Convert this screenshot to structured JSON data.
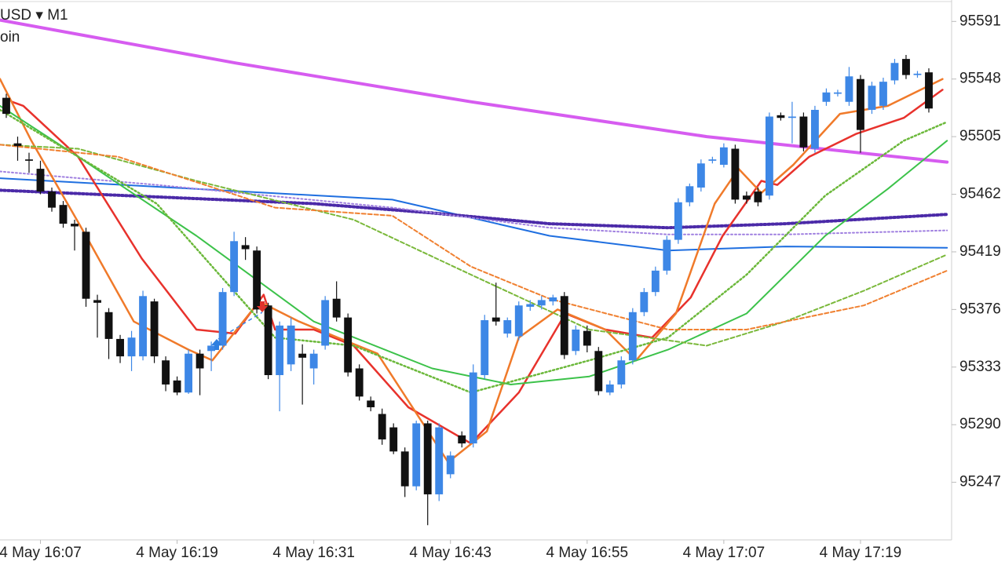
{
  "chart_data": {
    "type": "candlestick",
    "title": "USD ▾ M1",
    "subtitle": "oin",
    "up_color": "#3d87e6",
    "down_color": "#111111",
    "xlim": [
      -0.55,
      83
    ],
    "ylim": [
      95204,
      95607
    ],
    "yticks": [
      95591,
      95548,
      95505,
      95462,
      95419,
      95376,
      95333,
      95290,
      95247
    ],
    "xticks": [
      {
        "value": 3,
        "label": "4 May 16:07"
      },
      {
        "value": 15,
        "label": "4 May 16:19"
      },
      {
        "value": 27,
        "label": "4 May 16:31"
      },
      {
        "value": 39,
        "label": "4 May 16:43"
      },
      {
        "value": 51,
        "label": "4 May 16:55"
      },
      {
        "value": 63,
        "label": "4 May 17:07"
      },
      {
        "value": 75,
        "label": "4 May 17:19"
      }
    ],
    "grid": false,
    "candles": {
      "open": [
        95534,
        95500,
        95488,
        95481,
        95464,
        95454,
        95440,
        95434,
        95383,
        95374,
        95354,
        95341,
        95341,
        95382,
        95338,
        95323,
        95314,
        95343,
        95345,
        95349,
        95389,
        95424,
        95420,
        95379,
        95327,
        95335,
        95343,
        95332,
        95349,
        95384,
        95370,
        95332,
        95308,
        95298,
        95288,
        95270,
        95244,
        95291,
        95238,
        95253,
        95282,
        95276,
        95327,
        95370,
        95358,
        95356,
        95378,
        95379,
        95382,
        95386,
        95345,
        95360,
        95345,
        95314,
        95320,
        95338,
        95374,
        95389,
        95405,
        95428,
        95456,
        95467,
        95487,
        95484,
        95496,
        95461,
        95464,
        95461,
        95521,
        95519,
        95520,
        95496,
        95531,
        95537,
        95531,
        95548,
        95525,
        95528,
        95547,
        95563,
        95551,
        95553
      ],
      "high": [
        95537,
        95505,
        95493,
        95487,
        95467,
        95457,
        95443,
        95437,
        95387,
        95377,
        95357,
        95360,
        95390,
        95384,
        95341,
        95326,
        95346,
        95346,
        95352,
        95392,
        95434,
        95430,
        95423,
        95381,
        95367,
        95370,
        95350,
        95346,
        95386,
        95397,
        95373,
        95335,
        95311,
        95302,
        95291,
        95273,
        95293,
        95293,
        95291,
        95270,
        95285,
        95335,
        95372,
        95396,
        95370,
        95382,
        95383,
        95386,
        95387,
        95389,
        95364,
        95364,
        95348,
        95323,
        95341,
        95377,
        95392,
        95408,
        95431,
        95459,
        95470,
        95488,
        95490,
        95500,
        95499,
        95464,
        95467,
        95523,
        95523,
        95531,
        95523,
        95528,
        95541,
        95540,
        95557,
        95551,
        95546,
        95549,
        95563,
        95566,
        95554,
        95556
      ],
      "low": [
        95519,
        95487,
        95478,
        95462,
        95449,
        95437,
        95420,
        95378,
        95355,
        95339,
        95336,
        95330,
        95338,
        95336,
        95315,
        95312,
        95313,
        95312,
        95330,
        95346,
        95386,
        95413,
        95373,
        95324,
        95300,
        95330,
        95305,
        95320,
        95346,
        95367,
        95326,
        95308,
        95300,
        95275,
        95268,
        95236,
        95241,
        95215,
        95233,
        95250,
        95273,
        95273,
        95324,
        95364,
        95355,
        95353,
        95375,
        95376,
        95379,
        95339,
        95342,
        95344,
        95312,
        95312,
        95317,
        95335,
        95371,
        95386,
        95402,
        95425,
        95453,
        95464,
        95485,
        95482,
        95455,
        95455,
        95453,
        95458,
        95517,
        95500,
        95494,
        95493,
        95528,
        95535,
        95528,
        95493,
        95522,
        95525,
        95544,
        95548,
        95549,
        95523
      ],
      "close": [
        95522,
        95498,
        95487,
        95464,
        95452,
        95440,
        95438,
        95384,
        95381,
        95354,
        95341,
        95355,
        95386,
        95341,
        95320,
        95314,
        95343,
        95332,
        95349,
        95389,
        95427,
        95421,
        95376,
        95327,
        95364,
        95364,
        95340,
        95343,
        95383,
        95370,
        95329,
        95311,
        95303,
        95279,
        95270,
        95244,
        95291,
        95238,
        95288,
        95267,
        95276,
        95329,
        95368,
        95367,
        95368,
        95379,
        95380,
        95383,
        95385,
        95342,
        95361,
        95349,
        95315,
        95320,
        95338,
        95374,
        95389,
        95405,
        95428,
        95456,
        95468,
        95485,
        95488,
        95497,
        95458,
        95458,
        95456,
        95520,
        95519,
        95520,
        95497,
        95525,
        95538,
        95538,
        95550,
        95510,
        95543,
        95546,
        95560,
        95551,
        95552,
        95526
      ]
    },
    "series": [
      {
        "color": "#d65cf0",
        "dash": "solid",
        "x": [
          -0.55,
          20.1,
          40.8,
          61.5,
          82.6
        ],
        "values": [
          95592,
          95560,
          95531,
          95505,
          95486
        ]
      },
      {
        "color": "#1f6fe0",
        "dash": "solid",
        "x": [
          -0.55,
          33.9,
          47.7,
          58.1,
          68.4,
          82.6
        ],
        "values": [
          95474,
          95458,
          95431,
          95420,
          95423,
          95422
        ]
      },
      {
        "color": "#4b2aa8",
        "dash": "dotted",
        "x": [
          -0.55,
          27,
          37.4,
          47.7,
          58.1,
          68.4,
          82.6
        ],
        "values": [
          95465,
          95455,
          95448,
          95440,
          95437,
          95440,
          95447
        ]
      },
      {
        "color": "#a080e0",
        "dash": "dotted",
        "x": [
          -0.55,
          13.2,
          33.9,
          47.7,
          58.1,
          68.4,
          82.6
        ],
        "values": [
          95479,
          95469,
          95452,
          95437,
          95432,
          95432,
          95435
        ]
      },
      {
        "color": "#e8322c",
        "dash": "solid",
        "x": [
          0.5,
          1.5,
          6.3,
          11.9,
          16.7,
          20.1,
          22.6,
          23.6,
          27,
          30.5,
          35.3,
          40.8,
          45,
          49.1,
          52.6,
          56.7,
          60.1,
          62.9,
          66.3,
          67.7,
          70.5,
          74.6,
          78.8,
          82.2
        ],
        "values": [
          95531,
          95528,
          95490,
          95414,
          95361,
          95358,
          95387,
          95361,
          95361,
          95349,
          95303,
          95276,
          95314,
          95373,
          95361,
          95355,
          95385,
          95431,
          95472,
          95469,
          95490,
          95507,
          95519,
          95540
        ]
      },
      {
        "color": "#f07a2a",
        "dash": "solid",
        "x": [
          -0.55,
          2.2,
          7,
          11.2,
          16,
          18.1,
          22.2,
          25.7,
          29.1,
          32.6,
          38.8,
          42.2,
          45,
          48.4,
          52.6,
          55.3,
          58.8,
          62.2,
          64.3,
          66.3,
          69.1,
          73.2,
          77.4,
          82.2
        ],
        "values": [
          95548,
          95502,
          95431,
          95367,
          95346,
          95338,
          95382,
          95367,
          95355,
          95343,
          95262,
          95285,
          95355,
          95376,
          95361,
          95338,
          95373,
          95455,
          95481,
          95463,
          95484,
          95522,
          95528,
          95548
        ]
      },
      {
        "color": "#3cc24a",
        "dash": "solid",
        "x": [
          -0.55,
          6.3,
          16.7,
          27,
          37.4,
          44.3,
          51.2,
          58.1,
          65,
          71.9,
          77.4,
          82.6
        ],
        "values": [
          95528,
          95490,
          95431,
          95367,
          95332,
          95320,
          95326,
          95346,
          95373,
          95431,
          95466,
          95502
        ]
      },
      {
        "color": "#6bb83a",
        "dash": "dotted",
        "x": [
          -0.55,
          13.2,
          23.6,
          30.5,
          40.8,
          51.2,
          58.1,
          65,
          71.9,
          78.8,
          82.6
        ],
        "values": [
          95525,
          95455,
          95355,
          95349,
          95314,
          95338,
          95355,
          95402,
          95461,
          95502,
          95516
        ]
      },
      {
        "color": "#7ab83a",
        "dash": "dashed",
        "x": [
          -0.55,
          6.3,
          16.7,
          30.5,
          40.8,
          51.2,
          61.5,
          68.4,
          75.3,
          82.6
        ],
        "values": [
          95499,
          95496,
          95472,
          95443,
          95402,
          95361,
          95349,
          95367,
          95390,
          95417
        ]
      },
      {
        "color": "#f08030",
        "dash": "dashed",
        "x": [
          -0.55,
          9.8,
          23.6,
          33.9,
          40.8,
          47.7,
          58.1,
          65,
          75.3,
          82.6
        ],
        "values": [
          95499,
          95490,
          95452,
          95446,
          95408,
          95384,
          95361,
          95361,
          95379,
          95405
        ]
      }
    ]
  }
}
